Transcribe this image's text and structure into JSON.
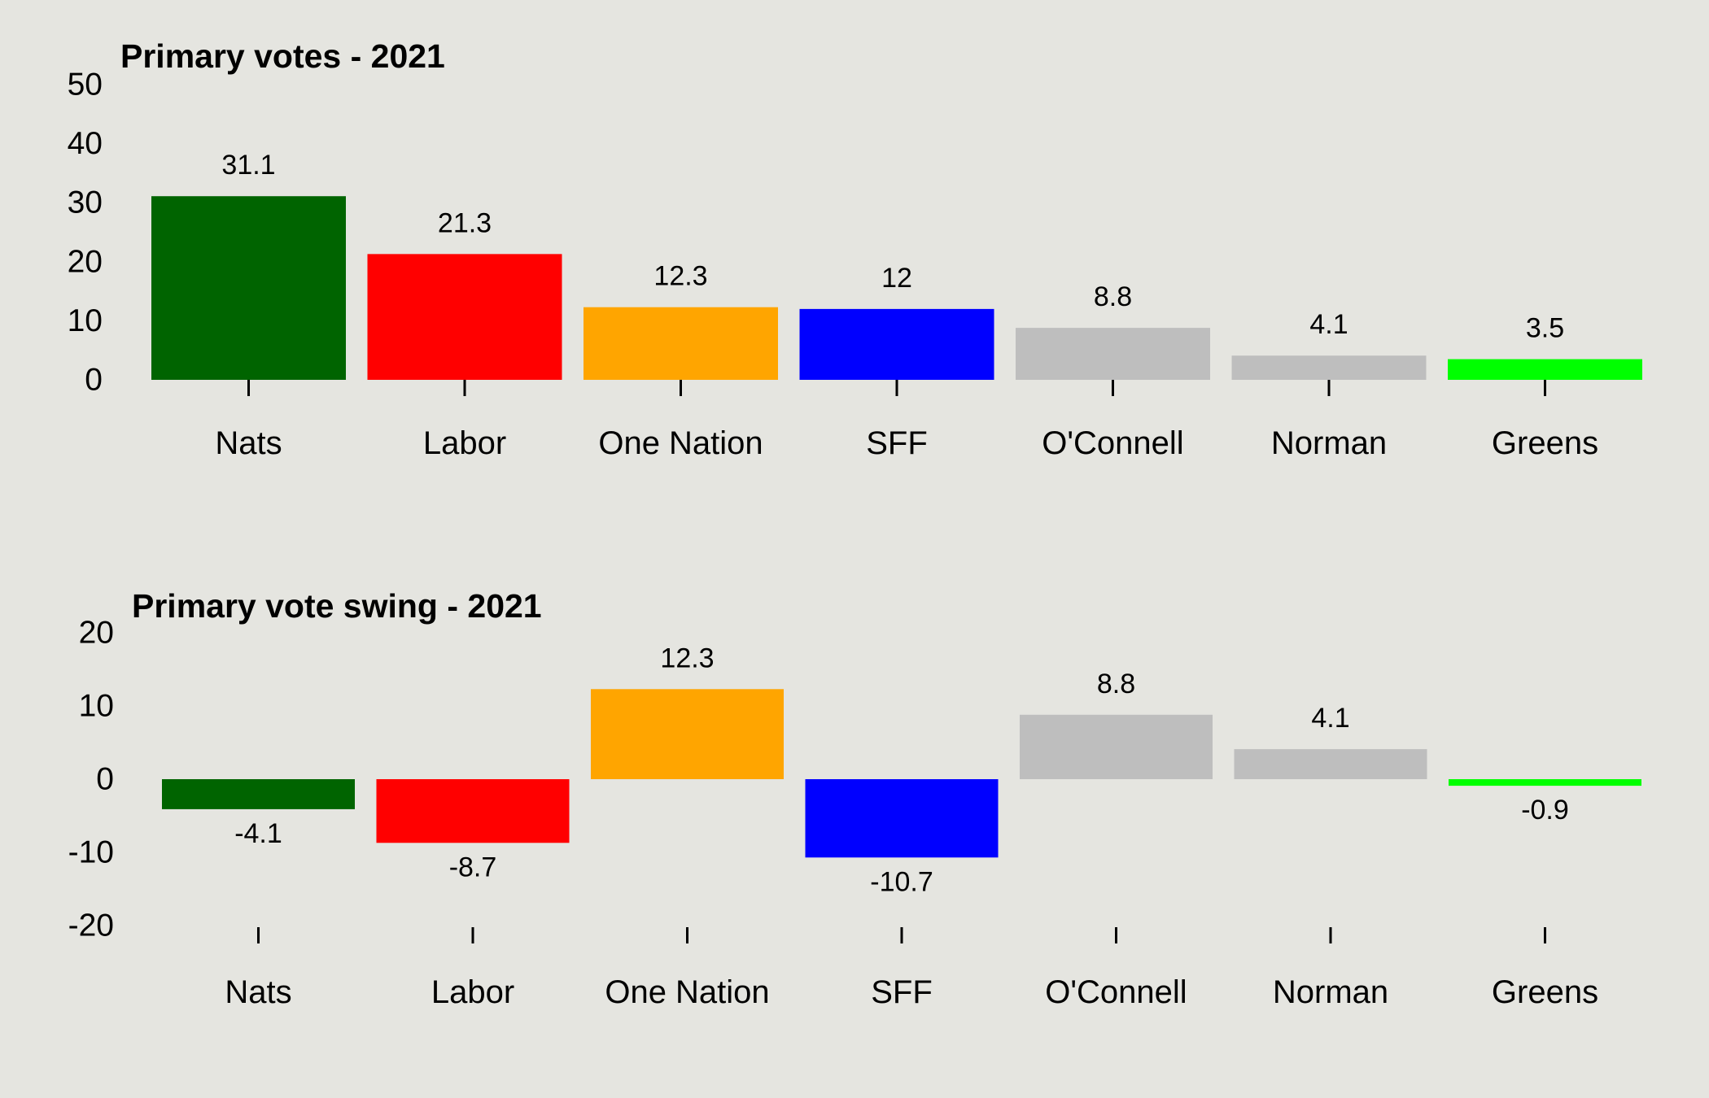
{
  "chart_data": [
    {
      "type": "bar",
      "title": "Primary votes - 2021",
      "xlabel": "",
      "ylabel": "",
      "categories": [
        "Nats",
        "Labor",
        "One Nation",
        "SFF",
        "O'Connell",
        "Norman",
        "Greens"
      ],
      "values": [
        31.1,
        21.3,
        12.3,
        12,
        8.8,
        4.1,
        3.5
      ],
      "data_labels": [
        "31.1",
        "21.3",
        "12.3",
        "12",
        "8.8",
        "4.1",
        "3.5"
      ],
      "colors": [
        "#006400",
        "#ff0000",
        "#ffa500",
        "#0000ff",
        "#bebebe",
        "#bebebe",
        "#00ff00"
      ],
      "yticks": [
        0,
        10,
        20,
        30,
        40,
        50
      ],
      "ylim": [
        0,
        50
      ],
      "grid": false,
      "legend": "none"
    },
    {
      "type": "bar",
      "title": "Primary vote swing - 2021",
      "xlabel": "",
      "ylabel": "",
      "categories": [
        "Nats",
        "Labor",
        "One Nation",
        "SFF",
        "O'Connell",
        "Norman",
        "Greens"
      ],
      "values": [
        -4.1,
        -8.7,
        12.3,
        -10.7,
        8.8,
        4.1,
        -0.9
      ],
      "data_labels": [
        "-4.1",
        "-8.7",
        "12.3",
        "-10.7",
        "8.8",
        "4.1",
        "-0.9"
      ],
      "colors": [
        "#006400",
        "#ff0000",
        "#ffa500",
        "#0000ff",
        "#bebebe",
        "#bebebe",
        "#00ff00"
      ],
      "yticks": [
        -20,
        -10,
        0,
        10,
        20
      ],
      "ylim": [
        -20,
        20
      ],
      "grid": false,
      "legend": "none"
    }
  ],
  "background": "#e5e5e0"
}
